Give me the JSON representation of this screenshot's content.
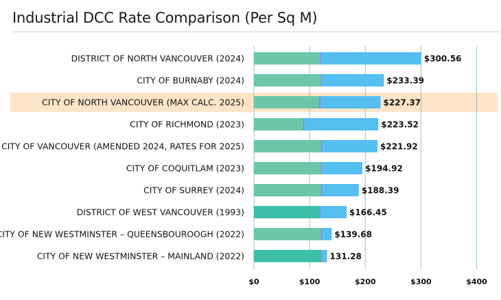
{
  "chart_data": {
    "type": "bar",
    "orientation": "horizontal",
    "stacked": true,
    "title": "Industrial DCC Rate Comparison (Per Sq M)",
    "xlabel": "",
    "ylabel": "",
    "xlim": [
      0,
      440
    ],
    "xticks": [
      0,
      100,
      200,
      300,
      400
    ],
    "xtick_labels": [
      "$0",
      "$100",
      "$200",
      "$300",
      "$400"
    ],
    "categories": [
      "DISTRICT OF NORTH VANCOUVER (2024)",
      "CITY OF BURNABY (2024)",
      "CITY OF NORTH VANCOUVER (MAX CALC. 2025)",
      "CITY OF RICHMOND (2023)",
      "CITY OF VANCOUVER (AMENDED 2024, RATES FOR 2025)",
      "CITY OF COQUITLAM (2023)",
      "CITY OF SURREY (2024)",
      "DISTRICT OF WEST VANCOUVER (1993)",
      "CITY OF NEW WESTMINSTER – QUEENSBOUROOGH (2022)",
      "CITY OF NEW WESTMINSTER – MAINLAND (2022)"
    ],
    "highlight_index": 2,
    "series": [
      {
        "name": "Segment 1",
        "values": [
          118,
          120,
          117,
          88,
          120,
          120,
          120,
          117,
          120,
          120
        ]
      },
      {
        "name": "Segment 2",
        "values": [
          2.5,
          2.5,
          2.5,
          2.5,
          2.5,
          2.5,
          2.5,
          2.5,
          2.5,
          2.5
        ]
      },
      {
        "name": "Segment 3",
        "values": [
          180.06,
          110.89,
          107.87,
          133.02,
          99.42,
          72.42,
          65.89,
          46.95,
          17.18,
          8.78
        ]
      }
    ],
    "totals": [
      300.56,
      233.39,
      227.37,
      223.52,
      221.92,
      194.92,
      188.39,
      166.45,
      139.68,
      131.28
    ],
    "value_labels": [
      "$300.56",
      "$233.39",
      "$227.37",
      "$223.52",
      "$221.92",
      "$194.92",
      "$188.39",
      "$166.45",
      "$139.68",
      "131.28"
    ],
    "segment1_colors": [
      "#6cc7a7",
      "#6cc7a7",
      "#6cc7a7",
      "#6cc7a7",
      "#6cc7a7",
      "#6cc7a7",
      "#6cc7a7",
      "#3bbfa8",
      "#6cc7a7",
      "#3bbfa8"
    ],
    "colors": {
      "segment2": "#7b8fd1",
      "segment3": "#55bfef",
      "highlight": "#fde3c8",
      "gridline": "#9bc4b8"
    }
  }
}
